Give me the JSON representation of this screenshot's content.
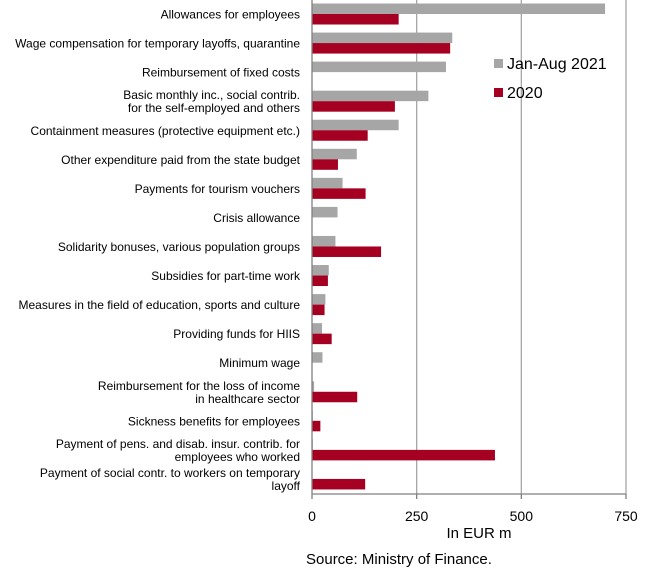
{
  "chart_data": {
    "type": "bar",
    "orientation": "horizontal",
    "categories": [
      [
        "Allowances for employees"
      ],
      [
        "Wage compensation for temporary layoffs, quarantine"
      ],
      [
        "Reimbursement of fixed costs"
      ],
      [
        "Basic monthly inc., social contrib.",
        "for the self-employed and others"
      ],
      [
        "Containment measures (protective equipment etc.)"
      ],
      [
        "Other expenditure paid from the state budget"
      ],
      [
        "Payments for tourism vouchers"
      ],
      [
        "Crisis allowance"
      ],
      [
        "Solidarity bonuses, various population groups"
      ],
      [
        "Subsidies for part-time work"
      ],
      [
        "Measures in the field of education, sports and culture"
      ],
      [
        "Providing funds for HIIS"
      ],
      [
        "Minimum wage"
      ],
      [
        "Reimbursement for the loss of income",
        "in healthcare sector"
      ],
      [
        "Sickness benefits for employees"
      ],
      [
        "Payment of pens. and disab. insur. contrib. for",
        "employees who worked"
      ],
      [
        "Payment of social contr. to workers on temporary",
        "layoff"
      ]
    ],
    "series": [
      {
        "name": "Jan-Aug 2021",
        "color": "#a6a6a6",
        "values": [
          700,
          335,
          320,
          278,
          207,
          107,
          73,
          61,
          56,
          40,
          32,
          24,
          25,
          5,
          2,
          2,
          0
        ]
      },
      {
        "name": "2020",
        "color": "#a50021",
        "values": [
          207,
          330,
          0,
          198,
          133,
          62,
          128,
          0,
          165,
          38,
          30,
          47,
          0,
          108,
          20,
          437,
          127
        ]
      }
    ],
    "xlabel": "In EUR m",
    "xlim": [
      0,
      750
    ],
    "xticks": [
      "0",
      "250",
      "500",
      "750"
    ],
    "grid": "vertical",
    "legend_placement": "top-right",
    "source": "Source: Ministry of Finance."
  }
}
